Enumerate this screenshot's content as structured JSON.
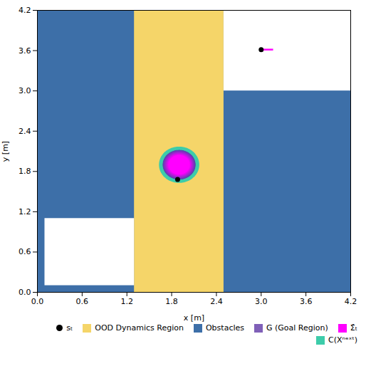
{
  "chart_data": {
    "type": "map",
    "xlabel": "x [m]",
    "ylabel": "y [m]",
    "xlim": [
      0.0,
      4.2
    ],
    "ylim": [
      0.0,
      4.2
    ],
    "xticks": [
      {
        "value": 0.0,
        "label": "0.0"
      },
      0.6,
      1.2,
      1.8,
      2.4,
      {
        "value": 3.0,
        "label": "3.0"
      },
      3.6,
      4.2
    ],
    "yticks": [
      {
        "value": 0.0,
        "label": "0.0"
      },
      0.6,
      1.2,
      1.8,
      2.4,
      {
        "value": 3.0,
        "label": "3.0"
      },
      3.6,
      4.2
    ],
    "background_color": "#3d6fa8",
    "regions": [
      {
        "x": 1.3,
        "y": 0.0,
        "w": 1.2,
        "h": 4.2,
        "color": "#f5d569"
      }
    ],
    "obstacles": [
      {
        "x": 2.5,
        "y": 3.0,
        "w": 1.7,
        "h": 1.2,
        "color": "#ffffff"
      },
      {
        "x": 0.1,
        "y": 0.1,
        "w": 1.2,
        "h": 1.0,
        "color": "#ffffff"
      }
    ],
    "conformal_circle": {
      "x": 1.9,
      "y": 1.9,
      "r": 0.27,
      "color": "#3dccaa"
    },
    "goal_circle": {
      "x": 1.9,
      "y": 1.9,
      "r": 0.22,
      "gradient": [
        "#5544aa",
        "#ff00ff"
      ]
    },
    "sigma_circle": {
      "x": 1.9,
      "y": 1.9,
      "r": 0.14,
      "color": "#ff00ff"
    },
    "points": [
      {
        "x": 1.88,
        "y": 1.68,
        "color": "#000000"
      },
      {
        "x": 3.0,
        "y": 3.615,
        "color": "#000000"
      }
    ],
    "segment": {
      "x1": 3.0,
      "y1": 3.615,
      "x2": 3.16,
      "y2": 3.615,
      "color": "#ff00ff"
    },
    "legend": "lower right",
    "legend_entries": [
      {
        "label": "sₜ",
        "color": "#000000",
        "marker": "circle"
      },
      {
        "label": "OOD Dynamics Region",
        "color": "#f5d569",
        "marker": "square"
      },
      {
        "label": "Obstacles",
        "color": "#3d6fa8",
        "marker": "square"
      },
      {
        "label": "G (Goal Region)",
        "color": "#8060b8",
        "marker": "square"
      },
      {
        "label": "Σ̂ₜ",
        "color": "#ff00ff",
        "marker": "square"
      },
      {
        "label": "C(Xⁿᵉˣᵗ)",
        "color": "#3dccaa",
        "marker": "square"
      }
    ]
  }
}
